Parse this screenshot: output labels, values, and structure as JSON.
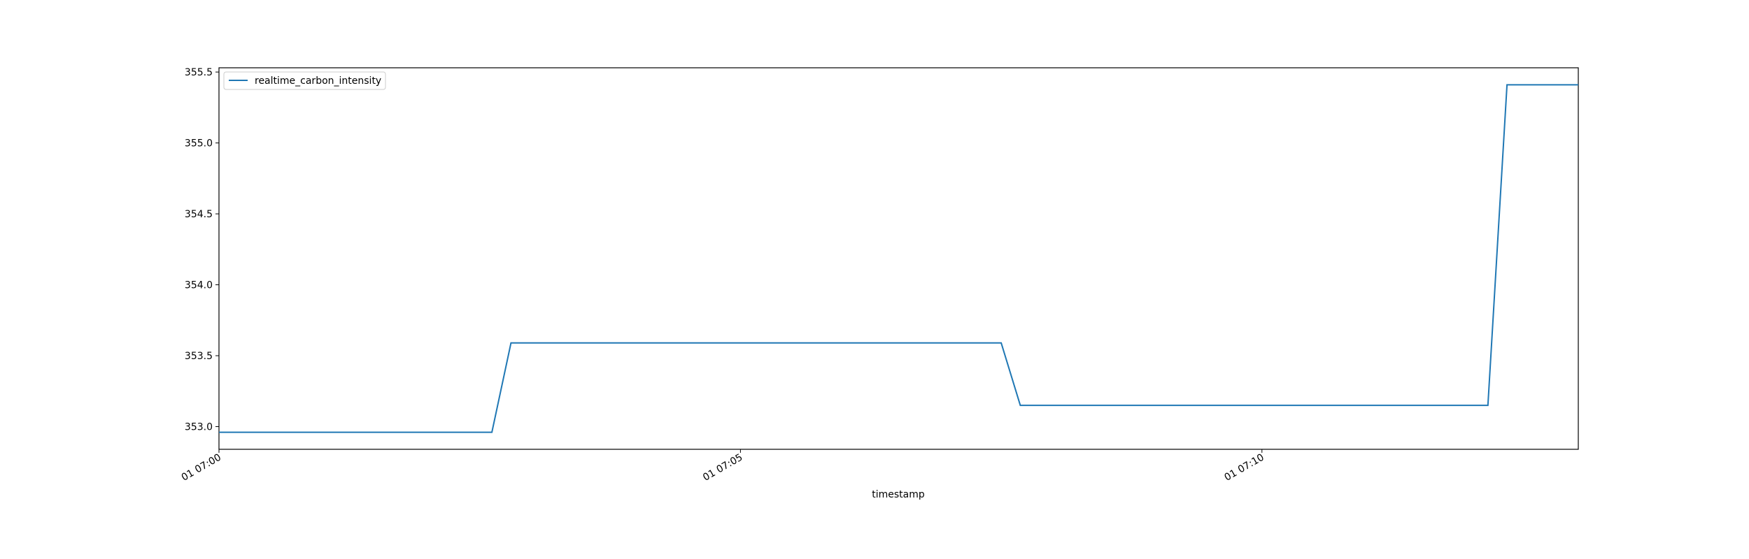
{
  "chart_data": {
    "type": "line",
    "xlabel": "timestamp",
    "ylabel": "",
    "x_unit": "time",
    "x_ticks": [
      "01 07:00",
      "01 07:05",
      "01 07:10"
    ],
    "y_ticks": [
      "353.0",
      "353.5",
      "354.0",
      "354.5",
      "355.0",
      "355.5"
    ],
    "xlim": [
      "07:00:00",
      "07:13:02"
    ],
    "ylim": [
      352.84,
      355.53
    ],
    "grid": false,
    "legend": {
      "placement": "upper-left"
    },
    "series": [
      {
        "name": "realtime_carbon_intensity",
        "color": "#1f77b4",
        "x": [
          "06:59:32",
          "07:00:00",
          "07:02:37",
          "07:02:48",
          "07:07:30",
          "07:07:41",
          "07:12:10",
          "07:12:21",
          "07:12:30",
          "07:13:02"
        ],
        "values": [
          352.96,
          352.96,
          352.96,
          353.59,
          353.59,
          353.15,
          353.15,
          355.41,
          355.41,
          355.41
        ]
      }
    ]
  }
}
